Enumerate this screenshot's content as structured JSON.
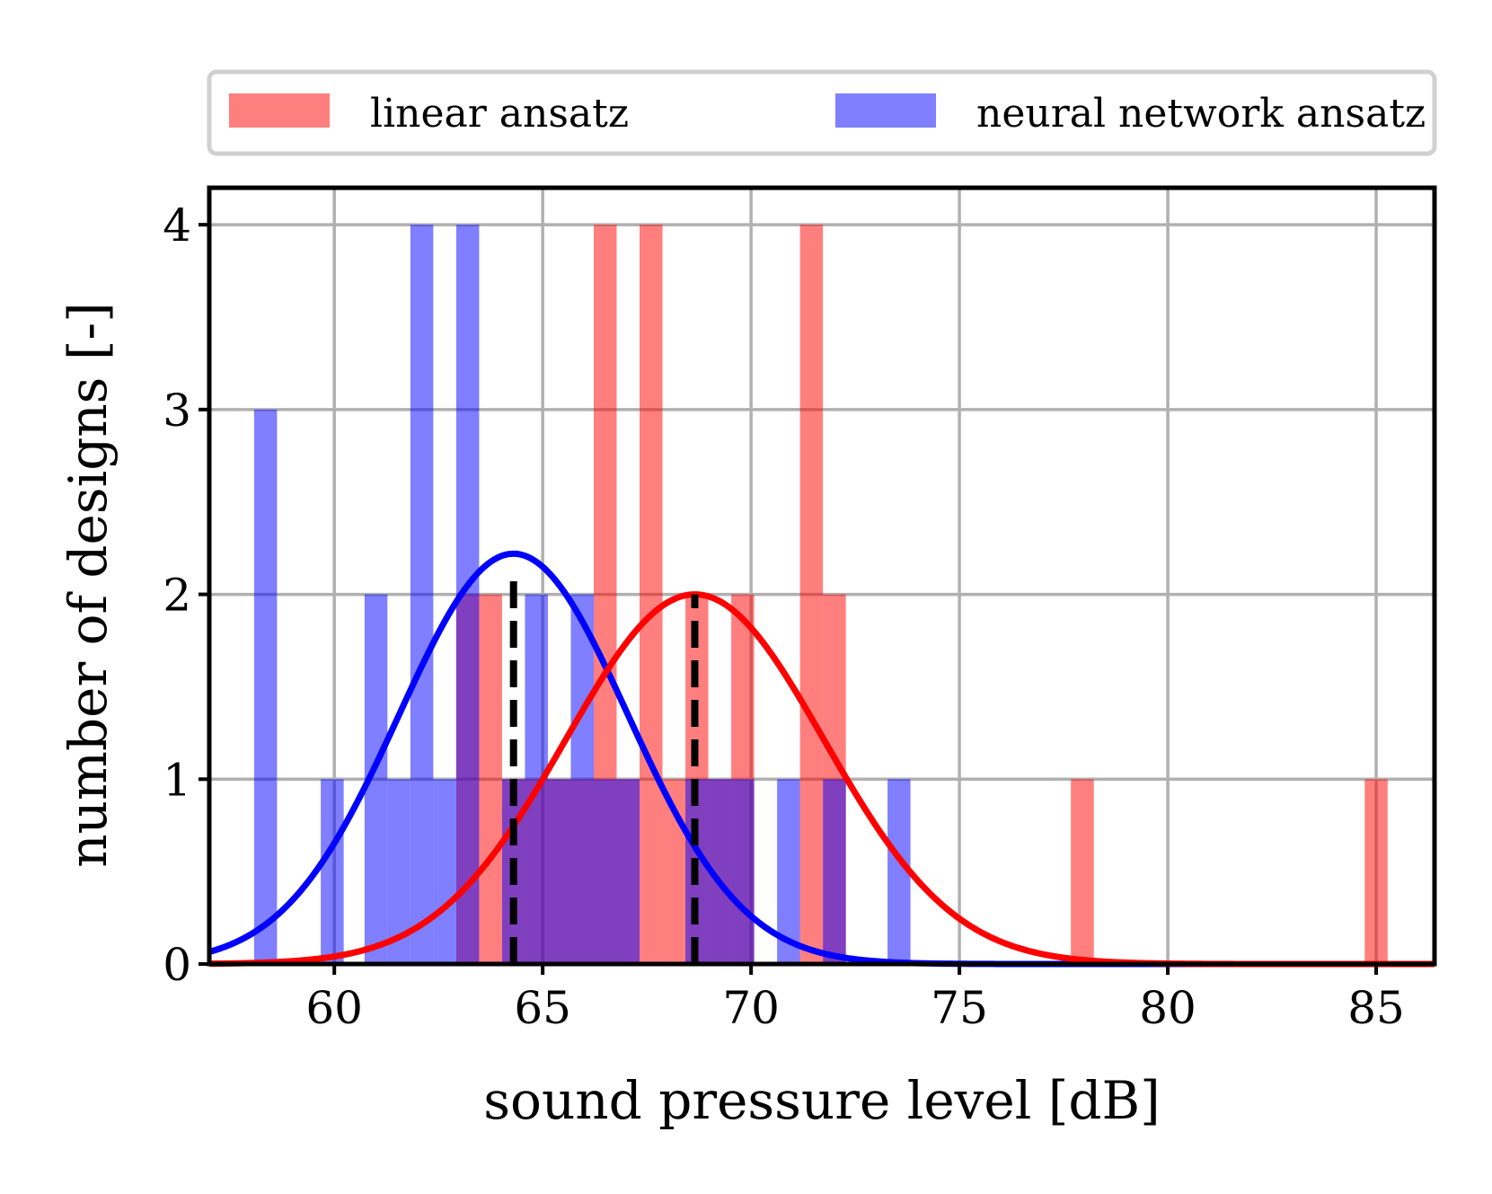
{
  "chart_data": {
    "type": "bar",
    "title": "",
    "xlabel": "sound pressure level [dB]",
    "ylabel": "number of designs [-]",
    "xlim": [
      57,
      86.4
    ],
    "ylim": [
      0,
      4.2
    ],
    "xticks": [
      60,
      65,
      70,
      75,
      80,
      85
    ],
    "xtick_labels": [
      "60",
      "65",
      "70",
      "75",
      "80",
      "85"
    ],
    "yticks": [
      0,
      1,
      2,
      3,
      4
    ],
    "ytick_labels": [
      "0",
      "1",
      "2",
      "3",
      "4"
    ],
    "grid": true,
    "legend_position": "top, above plot, 2 columns",
    "bin_width": 0.55,
    "series": [
      {
        "name": "linear ansatz",
        "color": "#ff0000",
        "alpha": 0.5,
        "bins": [
          {
            "x": 63.2,
            "count": 2
          },
          {
            "x": 63.75,
            "count": 2
          },
          {
            "x": 64.3,
            "count": 1
          },
          {
            "x": 64.85,
            "count": 1
          },
          {
            "x": 65.4,
            "count": 1
          },
          {
            "x": 65.95,
            "count": 1
          },
          {
            "x": 66.5,
            "count": 4
          },
          {
            "x": 67.05,
            "count": 1
          },
          {
            "x": 67.6,
            "count": 4
          },
          {
            "x": 68.15,
            "count": 1
          },
          {
            "x": 68.7,
            "count": 2
          },
          {
            "x": 69.25,
            "count": 1
          },
          {
            "x": 69.8,
            "count": 2
          },
          {
            "x": 71.45,
            "count": 4
          },
          {
            "x": 72.0,
            "count": 2
          },
          {
            "x": 77.95,
            "count": 1
          },
          {
            "x": 85.0,
            "count": 1
          }
        ],
        "fit_mean": 68.65,
        "fit_peak": 2.0,
        "fit_sigma": 3.1
      },
      {
        "name": "neural network ansatz",
        "color": "#0000ff",
        "alpha": 0.5,
        "bins": [
          {
            "x": 58.35,
            "count": 3
          },
          {
            "x": 59.95,
            "count": 1
          },
          {
            "x": 61.0,
            "count": 2
          },
          {
            "x": 61.55,
            "count": 1
          },
          {
            "x": 62.1,
            "count": 4
          },
          {
            "x": 62.65,
            "count": 1
          },
          {
            "x": 63.2,
            "count": 4
          },
          {
            "x": 64.3,
            "count": 1
          },
          {
            "x": 64.85,
            "count": 2
          },
          {
            "x": 65.4,
            "count": 1
          },
          {
            "x": 65.95,
            "count": 2
          },
          {
            "x": 66.5,
            "count": 1
          },
          {
            "x": 67.05,
            "count": 1
          },
          {
            "x": 68.7,
            "count": 1
          },
          {
            "x": 69.25,
            "count": 1
          },
          {
            "x": 69.8,
            "count": 1
          },
          {
            "x": 70.9,
            "count": 1
          },
          {
            "x": 72.0,
            "count": 1
          },
          {
            "x": 73.55,
            "count": 1
          }
        ],
        "fit_mean": 64.3,
        "fit_peak": 2.22,
        "fit_sigma": 2.75
      }
    ],
    "mean_lines": [
      {
        "x": 64.3,
        "y_top": 2.12,
        "style": "dashed",
        "color": "#000000"
      },
      {
        "x": 68.65,
        "y_top": 2.0,
        "style": "dashed",
        "color": "#000000"
      }
    ],
    "legend": [
      "linear ansatz",
      "neural network ansatz"
    ]
  }
}
